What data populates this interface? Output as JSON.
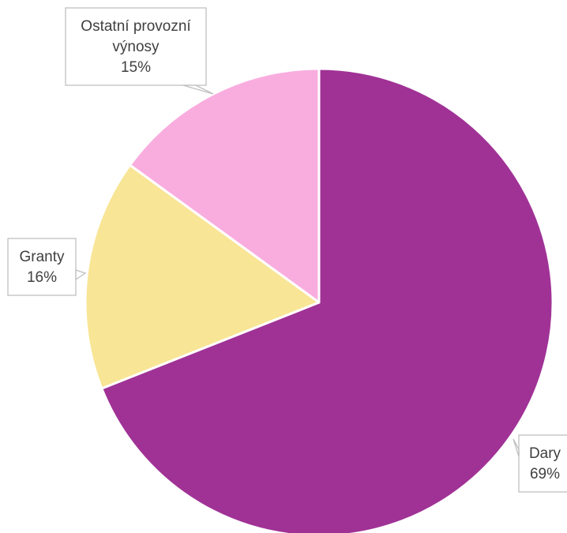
{
  "chart_data": {
    "type": "pie",
    "title": "",
    "start_angle_deg": 0,
    "direction": "clockwise",
    "slices": [
      {
        "name": "Dary",
        "value": 69,
        "label": "69%",
        "color": "#A03296"
      },
      {
        "name": "Granty",
        "value": 16,
        "label": "16%",
        "color": "#F8E595"
      },
      {
        "name": "Ostatní provozní výnosy",
        "name_lines": [
          "Ostatní provozní",
          "výnosy"
        ],
        "value": 15,
        "label": "15%",
        "color": "#F9ADDF"
      }
    ],
    "legend": "none",
    "data_labels": "callouts"
  },
  "colors": {
    "slice_border": "#FFFFFF",
    "callout_border": "#BFBFBF",
    "callout_text": "#404040"
  }
}
